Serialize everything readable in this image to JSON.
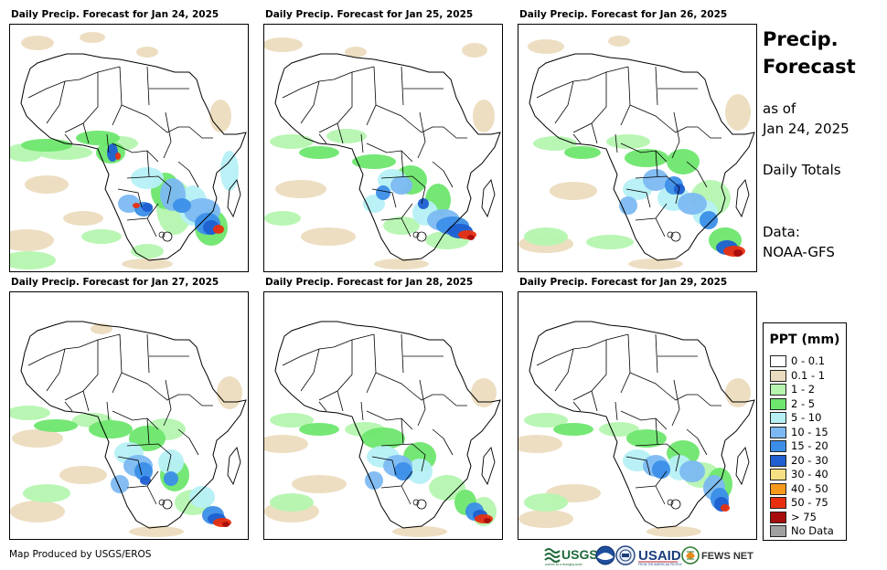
{
  "panels": [
    {
      "title": "Daily Precip. Forecast for Jan 24, 2025"
    },
    {
      "title": "Daily Precip. Forecast for Jan 25, 2025"
    },
    {
      "title": "Daily Precip. Forecast for Jan 26, 2025"
    },
    {
      "title": "Daily Precip. Forecast for Jan 27, 2025"
    },
    {
      "title": "Daily Precip. Forecast for Jan 28, 2025"
    },
    {
      "title": "Daily Precip. Forecast for Jan 29, 2025"
    }
  ],
  "sidebar": {
    "title_line1": "Precip.",
    "title_line2": "Forecast",
    "asof_line1": "as of",
    "asof_line2": "Jan 24, 2025",
    "totals": "Daily Totals",
    "data_line1": "Data:",
    "data_line2": "NOAA-GFS"
  },
  "legend": {
    "title": "PPT (mm)",
    "items": [
      {
        "label": "0 - 0.1",
        "color": "#ffffff"
      },
      {
        "label": "0.1 - 1",
        "color": "#ecdcbf"
      },
      {
        "label": "1 - 2",
        "color": "#b5f5b0"
      },
      {
        "label": "2 - 5",
        "color": "#6ee66e"
      },
      {
        "label": "5 - 10",
        "color": "#b6f0f5"
      },
      {
        "label": "10 - 15",
        "color": "#7cb9f2"
      },
      {
        "label": "15 - 20",
        "color": "#3b8ee8"
      },
      {
        "label": "20 - 30",
        "color": "#1f5fd1"
      },
      {
        "label": "30 - 40",
        "color": "#f7e084"
      },
      {
        "label": "40 - 50",
        "color": "#f59a1a"
      },
      {
        "label": "50 - 75",
        "color": "#e83010"
      },
      {
        "label": "> 75",
        "color": "#a80d0d"
      },
      {
        "label": "No Data",
        "color": "#a0a0a0"
      }
    ]
  },
  "footer": {
    "credit": "Map Produced by USGS/EROS",
    "logo_usgs": "USGS",
    "logo_usgs_tagline": "science for a changing world",
    "logo_usaid": "USAID",
    "logo_usaid_tagline": "FROM THE AMERICAN PEOPLE",
    "logo_fews": "FEWS NET"
  }
}
